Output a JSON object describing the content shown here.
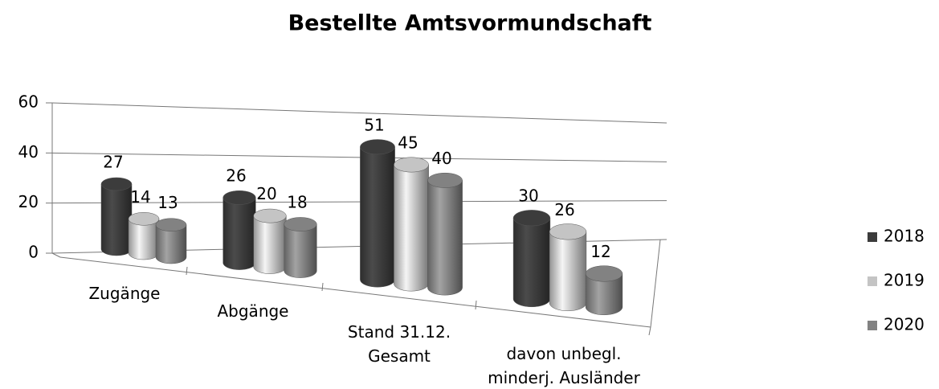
{
  "chart_data": {
    "type": "bar3d",
    "title": "Bestellte Amtsvormundschaft",
    "categories": [
      "Zugänge",
      "Abgänge",
      "Stand 31.12. Gesamt",
      "davon unbegl. minderj. Ausländer"
    ],
    "series": [
      {
        "name": "2018",
        "color": "#3c3c3c",
        "values": [
          27,
          26,
          51,
          30
        ]
      },
      {
        "name": "2019",
        "color": "#c4c4c4",
        "values": [
          14,
          20,
          45,
          26
        ]
      },
      {
        "name": "2020",
        "color": "#828282",
        "values": [
          13,
          18,
          40,
          12
        ]
      }
    ],
    "ylim": [
      0,
      60
    ],
    "yticks": [
      0,
      20,
      40,
      60
    ],
    "grid": true,
    "legend": "right"
  }
}
